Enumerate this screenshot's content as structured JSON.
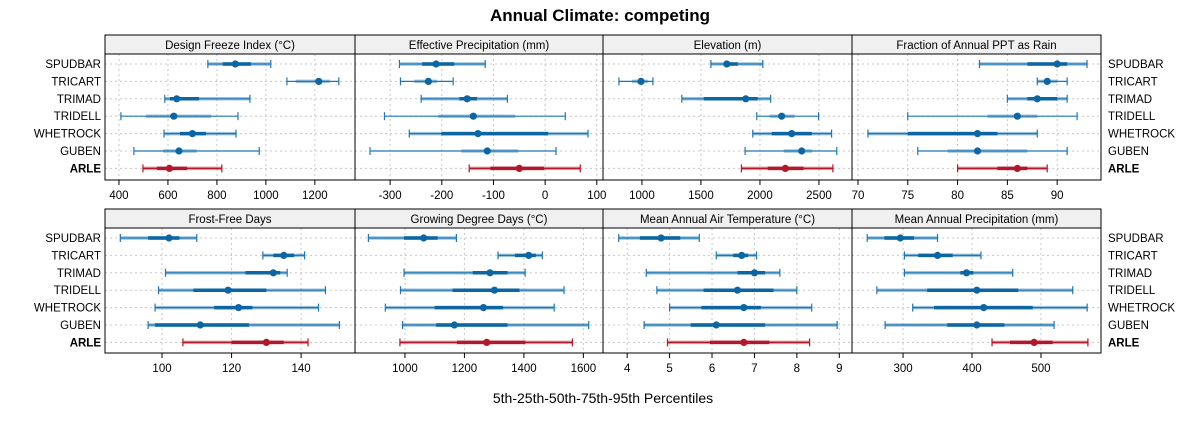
{
  "chart_data": {
    "type": "dot-interval",
    "title": "Annual Climate: competing",
    "xlabel": "5th-25th-50th-75th-95th Percentiles",
    "ylabel": "",
    "grid": true,
    "rows": [
      "SPUDBAR",
      "TRICART",
      "TRIMAD",
      "TRIDELL",
      "WHETROCK",
      "GUBEN",
      "ARLE"
    ],
    "highlight_row": "ARLE",
    "colors": {
      "series": "#1f78b4",
      "series_dark": "#0b66a3",
      "highlight": "#b2182b",
      "strip_bg": "#f0f0f0",
      "grid": "#c8c8c8"
    },
    "panels": [
      {
        "title": "Design Freeze Index (°C)",
        "xlim": [
          343,
          1364
        ],
        "ticks": [
          400,
          600,
          800,
          1000,
          1200
        ],
        "data": [
          {
            "p5": 763,
            "p95": 1020,
            "median": 875,
            "band": [
              824,
              939
            ],
            "band_type": "dark"
          },
          {
            "p5": 1086,
            "p95": 1298,
            "median": 1216,
            "band": [
              1122,
              1261
            ],
            "band_type": "light"
          },
          {
            "p5": 587,
            "p95": 935,
            "median": 636,
            "band": [
              608,
              727
            ],
            "band_type": "dark"
          },
          {
            "p5": 408,
            "p95": 886,
            "median": 624,
            "band": [
              510,
              776
            ],
            "band_type": "light"
          },
          {
            "p5": 584,
            "p95": 878,
            "median": 700,
            "band": [
              649,
              755
            ],
            "band_type": "dark"
          },
          {
            "p5": 461,
            "p95": 973,
            "median": 645,
            "band": [
              580,
              718
            ],
            "band_type": "light"
          },
          {
            "p5": 498,
            "p95": 820,
            "median": 606,
            "band": [
              555,
              678
            ],
            "band_type": "dark"
          }
        ]
      },
      {
        "title": "Effective Precipitation (mm)",
        "xlim": [
          -368,
          112
        ],
        "ticks": [
          -300,
          -200,
          -100,
          0,
          100
        ],
        "data": [
          {
            "p5": -282,
            "p95": -116,
            "median": -211,
            "band": [
              -238,
              -176
            ],
            "band_type": "dark"
          },
          {
            "p5": -280,
            "p95": -178,
            "median": -226,
            "band": [
              -253,
              -209
            ],
            "band_type": "light"
          },
          {
            "p5": -240,
            "p95": -73,
            "median": -151,
            "band": [
              -166,
              -132
            ],
            "band_type": "dark"
          },
          {
            "p5": -311,
            "p95": 39,
            "median": -139,
            "band": [
              -207,
              -58
            ],
            "band_type": "light"
          },
          {
            "p5": -263,
            "p95": 83,
            "median": -130,
            "band": [
              -201,
              6
            ],
            "band_type": "dark"
          },
          {
            "p5": -339,
            "p95": 21,
            "median": -112,
            "band": [
              -162,
              -52
            ],
            "band_type": "light"
          },
          {
            "p5": -147,
            "p95": 68,
            "median": -50,
            "band": [
              -106,
              -2
            ],
            "band_type": "dark"
          }
        ]
      },
      {
        "title": "Elevation (m)",
        "xlim": [
          670,
          2780
        ],
        "ticks": [
          1000,
          1500,
          2000,
          2500
        ],
        "data": [
          {
            "p5": 1584,
            "p95": 2024,
            "median": 1719,
            "band": [
              1719,
              1812
            ],
            "band_type": "dark"
          },
          {
            "p5": 805,
            "p95": 1093,
            "median": 992,
            "band": [
              915,
              1051
            ],
            "band_type": "light"
          },
          {
            "p5": 1338,
            "p95": 2091,
            "median": 1880,
            "band": [
              1524,
              1981
            ],
            "band_type": "dark"
          },
          {
            "p5": 1973,
            "p95": 2497,
            "median": 2184,
            "band": [
              2083,
              2294
            ],
            "band_type": "light"
          },
          {
            "p5": 1939,
            "p95": 2607,
            "median": 2269,
            "band": [
              2100,
              2439
            ],
            "band_type": "dark"
          },
          {
            "p5": 1874,
            "p95": 2651,
            "median": 2354,
            "band": [
              2202,
              2444
            ],
            "band_type": "light"
          },
          {
            "p5": 1843,
            "p95": 2618,
            "median": 2215,
            "band": [
              2066,
              2370
            ],
            "band_type": "dark"
          }
        ]
      },
      {
        "title": "Fraction of Annual PPT as Rain",
        "xlim": [
          69.4,
          94.4
        ],
        "ticks": [
          70,
          75,
          80,
          85,
          90
        ],
        "data": [
          {
            "p5": 82.2,
            "p95": 93,
            "median": 90,
            "band": [
              87,
              91
            ],
            "band_type": "dark"
          },
          {
            "p5": 88,
            "p95": 91,
            "median": 89,
            "band": [
              88,
              90
            ],
            "band_type": "light"
          },
          {
            "p5": 85,
            "p95": 91,
            "median": 88,
            "band": [
              87,
              90
            ],
            "band_type": "dark"
          },
          {
            "p5": 75,
            "p95": 92,
            "median": 86,
            "band": [
              83,
              88
            ],
            "band_type": "light"
          },
          {
            "p5": 71,
            "p95": 88,
            "median": 82,
            "band": [
              75,
              84
            ],
            "band_type": "dark"
          },
          {
            "p5": 76,
            "p95": 91,
            "median": 82,
            "band": [
              79,
              87
            ],
            "band_type": "light"
          },
          {
            "p5": 80,
            "p95": 89,
            "median": 86,
            "band": [
              84,
              87
            ],
            "band_type": "dark"
          }
        ]
      },
      {
        "title": "Frost-Free Days",
        "xlim": [
          83.6,
          155.5
        ],
        "ticks": [
          100,
          120,
          140
        ],
        "data": [
          {
            "p5": 88,
            "p95": 110,
            "median": 102,
            "band": [
              96,
              105
            ],
            "band_type": "dark"
          },
          {
            "p5": 129,
            "p95": 141,
            "median": 135,
            "band": [
              132,
              138
            ],
            "band_type": "dark"
          },
          {
            "p5": 101,
            "p95": 136,
            "median": 132,
            "band": [
              124,
              134
            ],
            "band_type": "dark"
          },
          {
            "p5": 99,
            "p95": 147,
            "median": 119,
            "band": [
              109,
              130
            ],
            "band_type": "dark"
          },
          {
            "p5": 98,
            "p95": 145,
            "median": 122,
            "band": [
              115,
              126
            ],
            "band_type": "dark"
          },
          {
            "p5": 96,
            "p95": 151,
            "median": 111,
            "band": [
              98,
              125
            ],
            "band_type": "dark"
          },
          {
            "p5": 106,
            "p95": 142,
            "median": 130,
            "band": [
              120,
              135
            ],
            "band_type": "dark"
          }
        ]
      },
      {
        "title": "Growing Degree Days (°C)",
        "xlim": [
          832,
          1666
        ],
        "ticks": [
          1000,
          1200,
          1400,
          1600
        ],
        "data": [
          {
            "p5": 877,
            "p95": 1173,
            "median": 1063,
            "band": [
              997,
              1110
            ],
            "band_type": "dark"
          },
          {
            "p5": 1313,
            "p95": 1462,
            "median": 1416,
            "band": [
              1370,
              1440
            ],
            "band_type": "dark"
          },
          {
            "p5": 997,
            "p95": 1404,
            "median": 1286,
            "band": [
              1228,
              1345
            ],
            "band_type": "dark"
          },
          {
            "p5": 985,
            "p95": 1535,
            "median": 1301,
            "band": [
              1160,
              1385
            ],
            "band_type": "dark"
          },
          {
            "p5": 934,
            "p95": 1502,
            "median": 1264,
            "band": [
              1100,
              1330
            ],
            "band_type": "dark"
          },
          {
            "p5": 992,
            "p95": 1618,
            "median": 1166,
            "band": [
              1105,
              1345
            ],
            "band_type": "dark"
          },
          {
            "p5": 983,
            "p95": 1563,
            "median": 1275,
            "band": [
              1175,
              1405
            ],
            "band_type": "dark"
          }
        ]
      },
      {
        "title": "Mean Annual Air Temperature (°C)",
        "xlim": [
          3.43,
          9.3
        ],
        "ticks": [
          4,
          5,
          6,
          7,
          8,
          9
        ],
        "data": [
          {
            "p5": 3.8,
            "p95": 5.7,
            "median": 4.8,
            "band": [
              4.3,
              5.25
            ],
            "band_type": "dark"
          },
          {
            "p5": 6.1,
            "p95": 7.05,
            "median": 6.7,
            "band": [
              6.5,
              6.85
            ],
            "band_type": "dark"
          },
          {
            "p5": 4.45,
            "p95": 7.6,
            "median": 7.0,
            "band": [
              6.6,
              7.25
            ],
            "band_type": "dark"
          },
          {
            "p5": 4.7,
            "p95": 8.0,
            "median": 6.6,
            "band": [
              5.8,
              7.45
            ],
            "band_type": "dark"
          },
          {
            "p5": 5.0,
            "p95": 8.35,
            "median": 6.75,
            "band": [
              5.75,
              7.15
            ],
            "band_type": "dark"
          },
          {
            "p5": 4.4,
            "p95": 8.95,
            "median": 6.1,
            "band": [
              5.5,
              7.25
            ],
            "band_type": "dark"
          },
          {
            "p5": 4.95,
            "p95": 8.3,
            "median": 6.75,
            "band": [
              5.95,
              7.35
            ],
            "band_type": "dark"
          }
        ]
      },
      {
        "title": "Mean Annual Precipitation (mm)",
        "xlim": [
          226,
          587
        ],
        "ticks": [
          300,
          400,
          500
        ],
        "data": [
          {
            "p5": 248,
            "p95": 350,
            "median": 296,
            "band": [
              273,
              316
            ],
            "band_type": "dark"
          },
          {
            "p5": 302,
            "p95": 413,
            "median": 350,
            "band": [
              322,
              372
            ],
            "band_type": "dark"
          },
          {
            "p5": 302,
            "p95": 459,
            "median": 392,
            "band": [
              383,
              402
            ],
            "band_type": "dark"
          },
          {
            "p5": 262,
            "p95": 546,
            "median": 407,
            "band": [
              335,
              467
            ],
            "band_type": "dark"
          },
          {
            "p5": 314,
            "p95": 567,
            "median": 417,
            "band": [
              345,
              488
            ],
            "band_type": "dark"
          },
          {
            "p5": 274,
            "p95": 519,
            "median": 407,
            "band": [
              364,
              447
            ],
            "band_type": "dark"
          },
          {
            "p5": 429,
            "p95": 568,
            "median": 490,
            "band": [
              455,
              517
            ],
            "band_type": "dark"
          }
        ]
      }
    ]
  }
}
